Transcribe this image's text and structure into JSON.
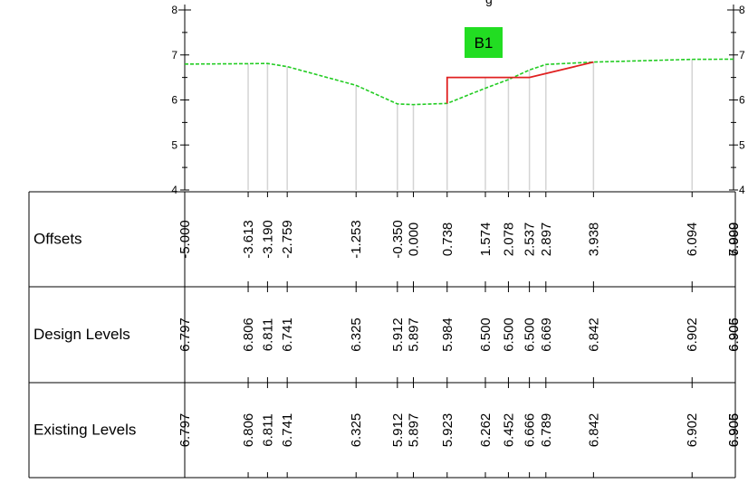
{
  "chart_data": {
    "type": "line",
    "title_partial": "g",
    "section_label": "B1",
    "colors": {
      "existing": "#22cc22",
      "design": "#e02020",
      "label_bg": "#22dd22",
      "grid": "#d4d4d4",
      "axis": "#000000"
    },
    "ylim": [
      4,
      8
    ],
    "xlim": [
      -5.0,
      7.0
    ],
    "y_ticks": [
      "4",
      "5",
      "6",
      "7",
      "8"
    ],
    "offsets": [
      -5.0,
      -3.613,
      -3.19,
      -2.759,
      -1.253,
      -0.35,
      0.0,
      0.738,
      1.574,
      2.078,
      2.537,
      2.897,
      3.938,
      6.094,
      7.0
    ],
    "offset_labels": [
      "-5.000",
      "-3.613",
      "-3.190",
      "-2.759",
      "-1.253",
      "-0.350",
      "0.000",
      "0.738",
      "1.574",
      "2.078",
      "2.537",
      "2.897",
      "3.938",
      "6.094",
      "7.000"
    ],
    "offset_labels_overlap": [
      "6.999"
    ],
    "design_levels": [
      6.797,
      6.806,
      6.811,
      6.741,
      6.325,
      5.912,
      5.897,
      5.984,
      6.5,
      6.5,
      6.5,
      6.669,
      6.842,
      6.902,
      6.906
    ],
    "design_labels": [
      "6.797",
      "6.806",
      "6.811",
      "6.741",
      "6.325",
      "5.912",
      "5.897",
      "5.984",
      "6.500",
      "6.500",
      "6.500",
      "6.669",
      "6.842",
      "6.902",
      "6.906"
    ],
    "design_labels_overlap": [
      "6.905"
    ],
    "existing_levels": [
      6.797,
      6.806,
      6.811,
      6.741,
      6.325,
      5.912,
      5.897,
      5.923,
      6.262,
      6.452,
      6.666,
      6.789,
      6.842,
      6.902,
      6.906
    ],
    "existing_labels": [
      "6.797",
      "6.806",
      "6.811",
      "6.741",
      "6.325",
      "5.912",
      "5.897",
      "5.923",
      "6.262",
      "6.452",
      "6.666",
      "6.789",
      "6.842",
      "6.902",
      "6.906"
    ],
    "existing_labels_overlap": [
      "6.905"
    ],
    "design_points": [
      [
        0.738,
        5.923
      ],
      [
        0.738,
        6.5
      ],
      [
        2.537,
        6.5
      ],
      [
        3.938,
        6.842
      ]
    ],
    "table_rows": [
      "Offsets",
      "Design Levels",
      "Existing Levels"
    ]
  }
}
